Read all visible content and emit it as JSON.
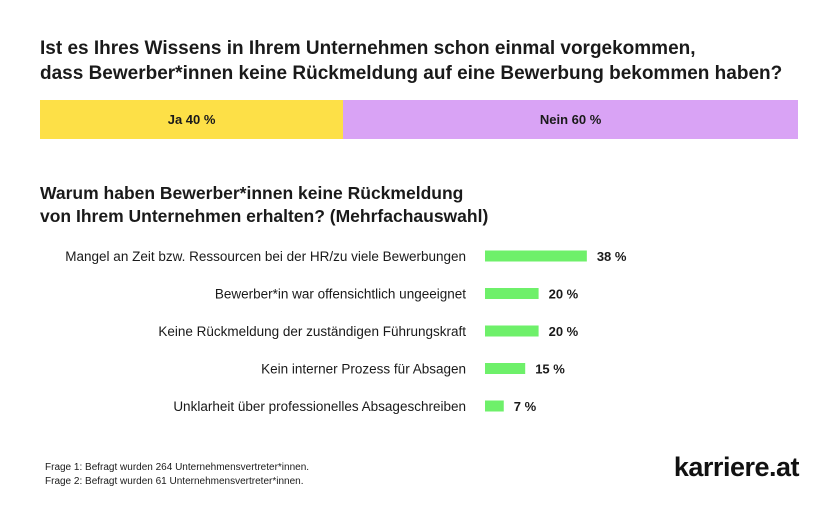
{
  "question1": {
    "title_lines": [
      "Ist es Ihres Wissens in Ihrem Unternehmen schon einmal vorgekommen,",
      "dass Bewerber*innen keine Rückmeldung auf eine Bewerbung bekommen haben?"
    ],
    "segments": [
      {
        "label": "Ja 40 %",
        "value": 40,
        "color": "#fde047"
      },
      {
        "label": "Nein 60 %",
        "value": 60,
        "color": "#d9a3f5"
      }
    ]
  },
  "question2": {
    "title_lines": [
      "Warum haben Bewerber*innen keine Rückmeldung",
      "von Ihrem Unternehmen erhalten? (Mehrfachauswahl)"
    ]
  },
  "chart_data": {
    "type": "bar",
    "orientation": "horizontal",
    "categories": [
      "Mangel an Zeit bzw. Ressourcen bei der HR/zu viele Bewerbungen",
      "Bewerber*in war offensichtlich ungeeignet",
      "Keine Rückmeldung der zuständigen Führungskraft",
      "Kein interner Prozess für Absagen",
      "Unklarheit über professionelles Absageschreiben"
    ],
    "values": [
      38,
      20,
      20,
      15,
      7
    ],
    "value_labels": [
      "38 %",
      "20 %",
      "20 %",
      "15 %",
      "7 %"
    ],
    "unit": "%",
    "bar_color": "#6ef06a",
    "grid": false,
    "legend": "none"
  },
  "footnotes": [
    "Frage 1: Befragt wurden 264 Unternehmensvertreter*innen.",
    "Frage 2: Befragt wurden 61 Unternehmensvertreter*innen."
  ],
  "brand": {
    "logo_text": "karriere.at"
  }
}
